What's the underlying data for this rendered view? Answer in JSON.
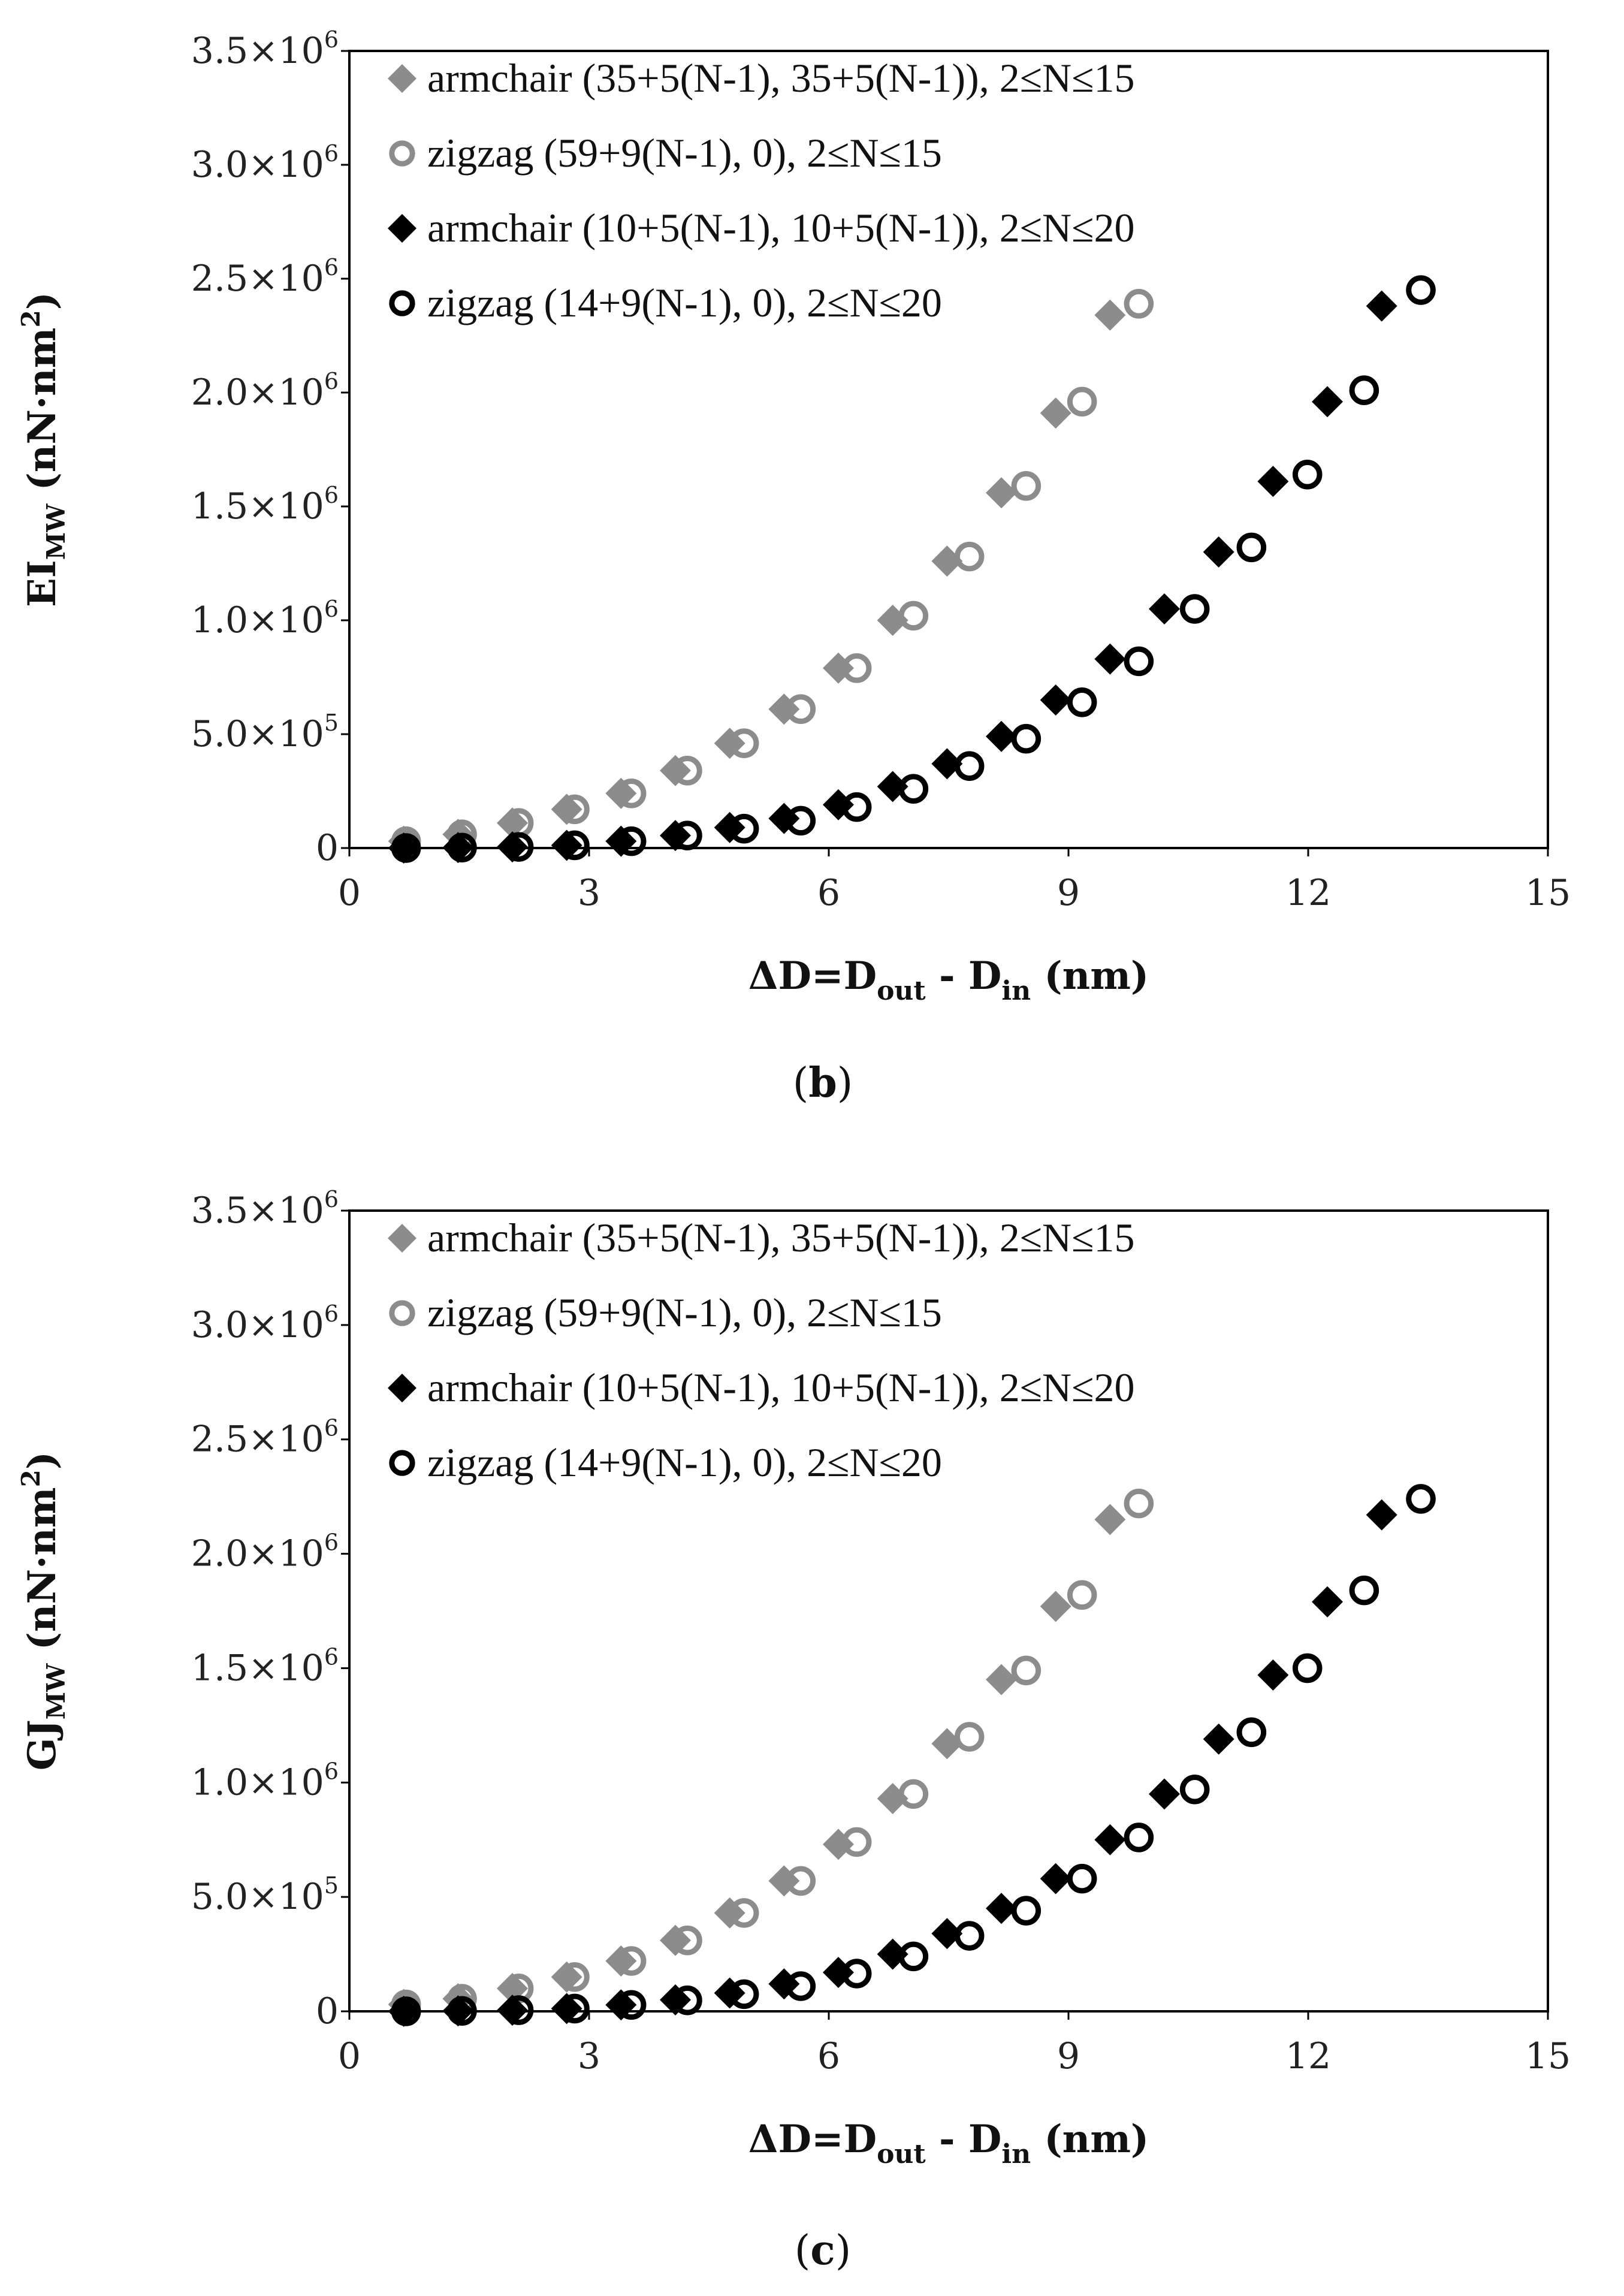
{
  "chart_data": [
    {
      "type": "scatter",
      "caption_letter": "b",
      "title": "",
      "xlabel": {
        "prefix": "ΔD=D",
        "sub1": "out",
        "mid": " - D",
        "sub2": "in",
        "suffix": " (nm)"
      },
      "ylabel": {
        "main": "EI",
        "sub": "MW",
        "unit": " (nN·nm",
        "sup": "2",
        "end": ")"
      },
      "xlim": [
        0,
        15
      ],
      "ylim": [
        0,
        3500000
      ],
      "xticks": [
        "0",
        "3",
        "6",
        "9",
        "12",
        "15"
      ],
      "yticks": [
        {
          "mant": "3.5×10",
          "exp": "6",
          "plain": ""
        },
        {
          "mant": "3.0×10",
          "exp": "6",
          "plain": ""
        },
        {
          "mant": "2.5×10",
          "exp": "6",
          "plain": ""
        },
        {
          "mant": "2.0×10",
          "exp": "6",
          "plain": ""
        },
        {
          "mant": "1.5×10",
          "exp": "6",
          "plain": ""
        },
        {
          "mant": "1.0×10",
          "exp": "6",
          "plain": ""
        },
        {
          "mant": "5.0×10",
          "exp": "5",
          "plain": ""
        },
        {
          "mant": "",
          "exp": "",
          "plain": "0"
        }
      ],
      "ytick_values": [
        3500000,
        3000000,
        2500000,
        2000000,
        1500000,
        1000000,
        500000,
        0
      ],
      "legend_position": "top-left",
      "series": [
        {
          "name": "armchair (35+5(N-1), 35+5(N-1)), 2≤N≤15",
          "marker": "diamond",
          "color": "#8c8c8c",
          "x": [
            0.68,
            1.36,
            2.04,
            2.72,
            3.4,
            4.08,
            4.76,
            5.44,
            6.12,
            6.8,
            7.48,
            8.16,
            8.84,
            9.52
          ],
          "y": [
            30000,
            60000,
            110000,
            170000,
            240000,
            340000,
            460000,
            610000,
            790000,
            1000000,
            1260000,
            1560000,
            1910000,
            2340000
          ]
        },
        {
          "name": "zigzag (59+9(N-1), 0), 2≤N≤15",
          "marker": "circle",
          "color": "#8c8c8c",
          "x": [
            0.71,
            1.41,
            2.12,
            2.82,
            3.53,
            4.23,
            4.94,
            5.65,
            6.35,
            7.06,
            7.76,
            8.47,
            9.17,
            9.88
          ],
          "y": [
            30000,
            60000,
            110000,
            170000,
            240000,
            340000,
            460000,
            610000,
            790000,
            1020000,
            1280000,
            1590000,
            1960000,
            2390000
          ]
        },
        {
          "name": "armchair (10+5(N-1), 10+5(N-1)), 2≤N≤20",
          "marker": "diamond",
          "color": "#000000",
          "x": [
            0.68,
            1.36,
            2.04,
            2.72,
            3.4,
            4.08,
            4.76,
            5.44,
            6.12,
            6.8,
            7.48,
            8.16,
            8.84,
            9.52,
            10.2,
            10.88,
            11.56,
            12.24,
            12.92
          ],
          "y": [
            0,
            2000,
            5000,
            12000,
            30000,
            55000,
            90000,
            130000,
            190000,
            270000,
            370000,
            490000,
            650000,
            830000,
            1050000,
            1300000,
            1610000,
            1960000,
            2380000
          ]
        },
        {
          "name": "zigzag (14+9(N-1), 0), 2≤N≤20",
          "marker": "circle",
          "color": "#000000",
          "x": [
            0.71,
            1.41,
            2.12,
            2.82,
            3.53,
            4.23,
            4.94,
            5.65,
            6.35,
            7.06,
            7.76,
            8.47,
            9.17,
            9.88,
            10.58,
            11.29,
            11.99,
            12.7,
            13.41
          ],
          "y": [
            0,
            2000,
            5000,
            12000,
            30000,
            55000,
            85000,
            120000,
            180000,
            260000,
            360000,
            480000,
            640000,
            820000,
            1050000,
            1320000,
            1640000,
            2010000,
            2450000
          ]
        }
      ]
    },
    {
      "type": "scatter",
      "caption_letter": "c",
      "title": "",
      "xlabel": {
        "prefix": "ΔD=D",
        "sub1": "out",
        "mid": " - D",
        "sub2": "in",
        "suffix": " (nm)"
      },
      "ylabel": {
        "main": "GJ",
        "sub": "MW",
        "unit": " (nN·nm",
        "sup": "2",
        "end": ")"
      },
      "xlim": [
        0,
        15
      ],
      "ylim": [
        0,
        3500000
      ],
      "xticks": [
        "0",
        "3",
        "6",
        "9",
        "12",
        "15"
      ],
      "yticks": [
        {
          "mant": "3.5×10",
          "exp": "6",
          "plain": ""
        },
        {
          "mant": "3.0×10",
          "exp": "6",
          "plain": ""
        },
        {
          "mant": "2.5×10",
          "exp": "6",
          "plain": ""
        },
        {
          "mant": "2.0×10",
          "exp": "6",
          "plain": ""
        },
        {
          "mant": "1.5×10",
          "exp": "6",
          "plain": ""
        },
        {
          "mant": "1.0×10",
          "exp": "6",
          "plain": ""
        },
        {
          "mant": "5.0×10",
          "exp": "5",
          "plain": ""
        },
        {
          "mant": "",
          "exp": "",
          "plain": "0"
        }
      ],
      "ytick_values": [
        3500000,
        3000000,
        2500000,
        2000000,
        1500000,
        1000000,
        500000,
        0
      ],
      "legend_position": "top-left",
      "series": [
        {
          "name": "armchair (35+5(N-1), 35+5(N-1)), 2≤N≤15",
          "marker": "diamond",
          "color": "#8c8c8c",
          "x": [
            0.68,
            1.36,
            2.04,
            2.72,
            3.4,
            4.08,
            4.76,
            5.44,
            6.12,
            6.8,
            7.48,
            8.16,
            8.84,
            9.52
          ],
          "y": [
            30000,
            55000,
            100000,
            150000,
            220000,
            310000,
            430000,
            570000,
            730000,
            930000,
            1170000,
            1450000,
            1770000,
            2150000
          ]
        },
        {
          "name": "zigzag (59+9(N-1), 0), 2≤N≤15",
          "marker": "circle",
          "color": "#8c8c8c",
          "x": [
            0.71,
            1.41,
            2.12,
            2.82,
            3.53,
            4.23,
            4.94,
            5.65,
            6.35,
            7.06,
            7.76,
            8.47,
            9.17,
            9.88
          ],
          "y": [
            30000,
            55000,
            100000,
            150000,
            220000,
            310000,
            430000,
            570000,
            740000,
            950000,
            1200000,
            1490000,
            1820000,
            2220000
          ]
        },
        {
          "name": "armchair (10+5(N-1), 10+5(N-1)), 2≤N≤20",
          "marker": "diamond",
          "color": "#000000",
          "x": [
            0.68,
            1.36,
            2.04,
            2.72,
            3.4,
            4.08,
            4.76,
            5.44,
            6.12,
            6.8,
            7.48,
            8.16,
            8.84,
            9.52,
            10.2,
            10.88,
            11.56,
            12.24,
            12.92
          ],
          "y": [
            0,
            2000,
            5000,
            12000,
            28000,
            50000,
            80000,
            120000,
            170000,
            250000,
            340000,
            450000,
            580000,
            750000,
            950000,
            1190000,
            1470000,
            1790000,
            2170000
          ]
        },
        {
          "name": "zigzag (14+9(N-1), 0), 2≤N≤20",
          "marker": "circle",
          "color": "#000000",
          "x": [
            0.71,
            1.41,
            2.12,
            2.82,
            3.53,
            4.23,
            4.94,
            5.65,
            6.35,
            7.06,
            7.76,
            8.47,
            9.17,
            9.88,
            10.58,
            11.29,
            11.99,
            12.7,
            13.41
          ],
          "y": [
            0,
            2000,
            5000,
            12000,
            28000,
            48000,
            75000,
            110000,
            165000,
            240000,
            330000,
            440000,
            580000,
            760000,
            970000,
            1220000,
            1500000,
            1840000,
            2240000
          ]
        }
      ]
    }
  ]
}
